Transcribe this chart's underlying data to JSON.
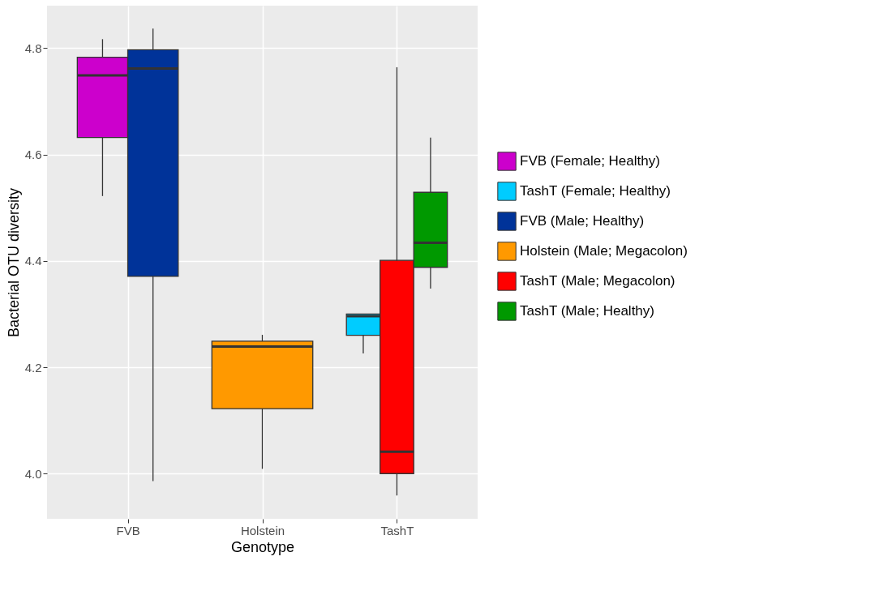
{
  "chart_data": {
    "type": "box",
    "xlabel": "Genotype",
    "ylabel": "Bacterial OTU diversity",
    "categories": [
      "FVB",
      "Holstein",
      "TashT"
    ],
    "ylim": [
      3.915,
      4.88
    ],
    "yticks": [
      {
        "value": 4.0,
        "label": "4.0"
      },
      4.2,
      4.4,
      4.6,
      4.8
    ],
    "grid": true,
    "legend": "right",
    "series": [
      {
        "name": "FVB (Female; Healthy)",
        "color": "#cc00cc",
        "boxes": [
          {
            "low": 4.522,
            "q1": 4.632,
            "median": 4.749,
            "q3": 4.783,
            "high": 4.817
          },
          null,
          null
        ]
      },
      {
        "name": "TashT (Female; Healthy)",
        "color": "#00ccff",
        "boxes": [
          null,
          null,
          {
            "low": 4.226,
            "q1": 4.26,
            "median": 4.296,
            "q3": 4.3,
            "high": 4.3
          }
        ]
      },
      {
        "name": "FVB (Male; Healthy)",
        "color": "#003399",
        "boxes": [
          {
            "low": 3.986,
            "q1": 4.371,
            "median": 4.762,
            "q3": 4.797,
            "high": 4.837
          },
          null,
          null
        ]
      },
      {
        "name": "Holstein (Male; Megacolon)",
        "color": "#ff9900",
        "boxes": [
          null,
          {
            "low": 4.009,
            "q1": 4.122,
            "median": 4.239,
            "q3": 4.249,
            "high": 4.261
          },
          null
        ]
      },
      {
        "name": "TashT (Male; Megacolon)",
        "color": "#ff0000",
        "boxes": [
          null,
          null,
          {
            "low": 3.959,
            "q1": 4.0,
            "median": 4.041,
            "q3": 4.401,
            "high": 4.764
          }
        ]
      },
      {
        "name": "TashT (Male; Healthy)",
        "color": "#009900",
        "boxes": [
          null,
          null,
          {
            "low": 4.348,
            "q1": 4.388,
            "median": 4.434,
            "q3": 4.529,
            "high": 4.632
          }
        ]
      }
    ]
  }
}
